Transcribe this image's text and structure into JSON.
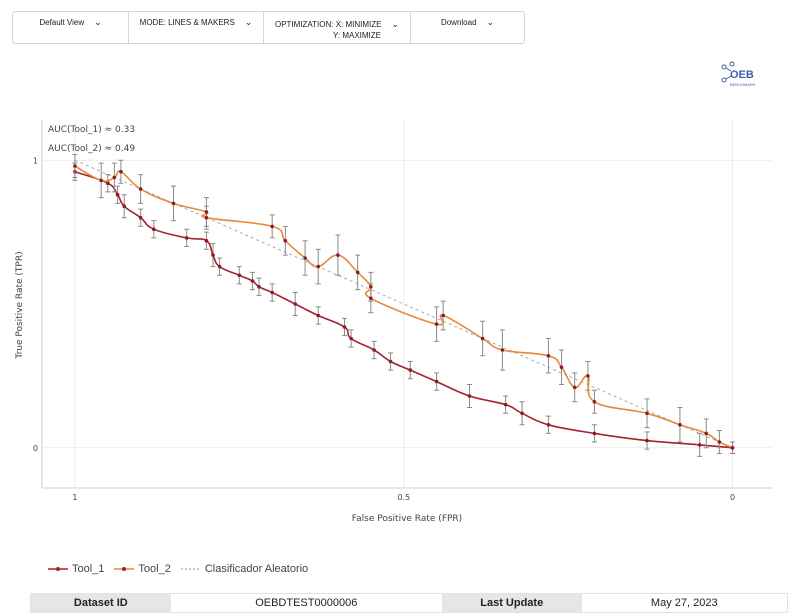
{
  "toolbar": {
    "default_view": "Default View",
    "mode": "MODE: LINES & MAKERS",
    "optimization_line1": "OPTIMIZATION:  X: MINIMIZE",
    "optimization_line2": "Y: MAXIMIZE",
    "download": "Download",
    "chevron": "⌄"
  },
  "logo": {
    "text": "OEB",
    "subtext": "BENCHMARK",
    "color": "#3f5fa8"
  },
  "chart_data": {
    "type": "line",
    "xlabel": "False Positive Rate (FPR)",
    "ylabel": "True Positive Rate (TPR)",
    "x_reversed": true,
    "xlim": [
      1.05,
      -0.06
    ],
    "ylim": [
      -0.14,
      1.14
    ],
    "x_ticks": [
      1,
      0.5,
      0
    ],
    "x_tick_labels": [
      "1",
      "0.5",
      "0"
    ],
    "y_ticks": [
      0,
      1
    ],
    "y_tick_labels": [
      "0",
      "1"
    ],
    "grid": true,
    "legend_position": "bottom-left",
    "annotations": [
      "AUC(Tool_1) ≈ 0.33",
      "AUC(Tool_2) ≈ 0.49"
    ],
    "series": [
      {
        "name": "Tool_1",
        "color": "#a3232f",
        "points": [
          {
            "x": 1.0,
            "y": 0.96,
            "e": 0.03
          },
          {
            "x": 0.95,
            "y": 0.92,
            "e": 0.03
          },
          {
            "x": 0.935,
            "y": 0.88,
            "e": 0.03
          },
          {
            "x": 0.925,
            "y": 0.84,
            "e": 0.04
          },
          {
            "x": 0.9,
            "y": 0.8,
            "e": 0.03
          },
          {
            "x": 0.88,
            "y": 0.76,
            "e": 0.03
          },
          {
            "x": 0.83,
            "y": 0.73,
            "e": 0.03
          },
          {
            "x": 0.8,
            "y": 0.72,
            "e": 0.03
          },
          {
            "x": 0.79,
            "y": 0.67,
            "e": 0.04
          },
          {
            "x": 0.78,
            "y": 0.63,
            "e": 0.03
          },
          {
            "x": 0.75,
            "y": 0.6,
            "e": 0.03
          },
          {
            "x": 0.73,
            "y": 0.58,
            "e": 0.03
          },
          {
            "x": 0.72,
            "y": 0.56,
            "e": 0.03
          },
          {
            "x": 0.7,
            "y": 0.54,
            "e": 0.03
          },
          {
            "x": 0.665,
            "y": 0.5,
            "e": 0.04
          },
          {
            "x": 0.63,
            "y": 0.46,
            "e": 0.03
          },
          {
            "x": 0.59,
            "y": 0.42,
            "e": 0.03
          },
          {
            "x": 0.58,
            "y": 0.38,
            "e": 0.03
          },
          {
            "x": 0.545,
            "y": 0.34,
            "e": 0.03
          },
          {
            "x": 0.52,
            "y": 0.3,
            "e": 0.03
          },
          {
            "x": 0.49,
            "y": 0.27,
            "e": 0.03
          },
          {
            "x": 0.45,
            "y": 0.23,
            "e": 0.03
          },
          {
            "x": 0.4,
            "y": 0.18,
            "e": 0.04
          },
          {
            "x": 0.345,
            "y": 0.15,
            "e": 0.03
          },
          {
            "x": 0.32,
            "y": 0.12,
            "e": 0.04
          },
          {
            "x": 0.28,
            "y": 0.08,
            "e": 0.03
          },
          {
            "x": 0.21,
            "y": 0.05,
            "e": 0.03
          },
          {
            "x": 0.13,
            "y": 0.025,
            "e": 0.03
          },
          {
            "x": 0.05,
            "y": 0.01,
            "e": 0.04
          },
          {
            "x": 0.0,
            "y": 0.0,
            "e": 0.02
          }
        ]
      },
      {
        "name": "Tool_2",
        "color": "#e8893a",
        "points": [
          {
            "x": 1.0,
            "y": 0.98,
            "e": 0.04
          },
          {
            "x": 0.96,
            "y": 0.93,
            "e": 0.06
          },
          {
            "x": 0.94,
            "y": 0.94,
            "e": 0.05
          },
          {
            "x": 0.93,
            "y": 0.96,
            "e": 0.04
          },
          {
            "x": 0.9,
            "y": 0.9,
            "e": 0.05
          },
          {
            "x": 0.85,
            "y": 0.85,
            "e": 0.06
          },
          {
            "x": 0.8,
            "y": 0.82,
            "e": 0.05
          },
          {
            "x": 0.8,
            "y": 0.8,
            "e": 0.04
          },
          {
            "x": 0.7,
            "y": 0.77,
            "e": 0.04
          },
          {
            "x": 0.68,
            "y": 0.72,
            "e": 0.05
          },
          {
            "x": 0.65,
            "y": 0.66,
            "e": 0.06
          },
          {
            "x": 0.63,
            "y": 0.63,
            "e": 0.06
          },
          {
            "x": 0.6,
            "y": 0.67,
            "e": 0.07
          },
          {
            "x": 0.57,
            "y": 0.61,
            "e": 0.06
          },
          {
            "x": 0.55,
            "y": 0.56,
            "e": 0.05
          },
          {
            "x": 0.55,
            "y": 0.52,
            "e": 0.05
          },
          {
            "x": 0.45,
            "y": 0.43,
            "e": 0.06
          },
          {
            "x": 0.44,
            "y": 0.46,
            "e": 0.05
          },
          {
            "x": 0.38,
            "y": 0.38,
            "e": 0.06
          },
          {
            "x": 0.35,
            "y": 0.34,
            "e": 0.07
          },
          {
            "x": 0.28,
            "y": 0.32,
            "e": 0.06
          },
          {
            "x": 0.26,
            "y": 0.28,
            "e": 0.06
          },
          {
            "x": 0.24,
            "y": 0.21,
            "e": 0.05
          },
          {
            "x": 0.22,
            "y": 0.25,
            "e": 0.05
          },
          {
            "x": 0.21,
            "y": 0.16,
            "e": 0.04
          },
          {
            "x": 0.13,
            "y": 0.12,
            "e": 0.05
          },
          {
            "x": 0.08,
            "y": 0.08,
            "e": 0.06
          },
          {
            "x": 0.04,
            "y": 0.05,
            "e": 0.05
          },
          {
            "x": 0.02,
            "y": 0.02,
            "e": 0.04
          },
          {
            "x": 0.0,
            "y": 0.0,
            "e": 0.02
          }
        ]
      },
      {
        "name": "Clasificador Aleatorio",
        "color": "#aaaaaa",
        "dashed": true,
        "points": [
          {
            "x": 1.0,
            "y": 1.0
          },
          {
            "x": 0.0,
            "y": 0.0
          }
        ]
      }
    ]
  },
  "legend": {
    "tool1": "Tool_1",
    "tool2": "Tool_2",
    "random": "Clasificador Aleatorio"
  },
  "info": {
    "dataset_label": "Dataset ID",
    "dataset_value": "OEBDTEST0000006",
    "update_label": "Last Update",
    "update_value": "May 27, 2023"
  }
}
